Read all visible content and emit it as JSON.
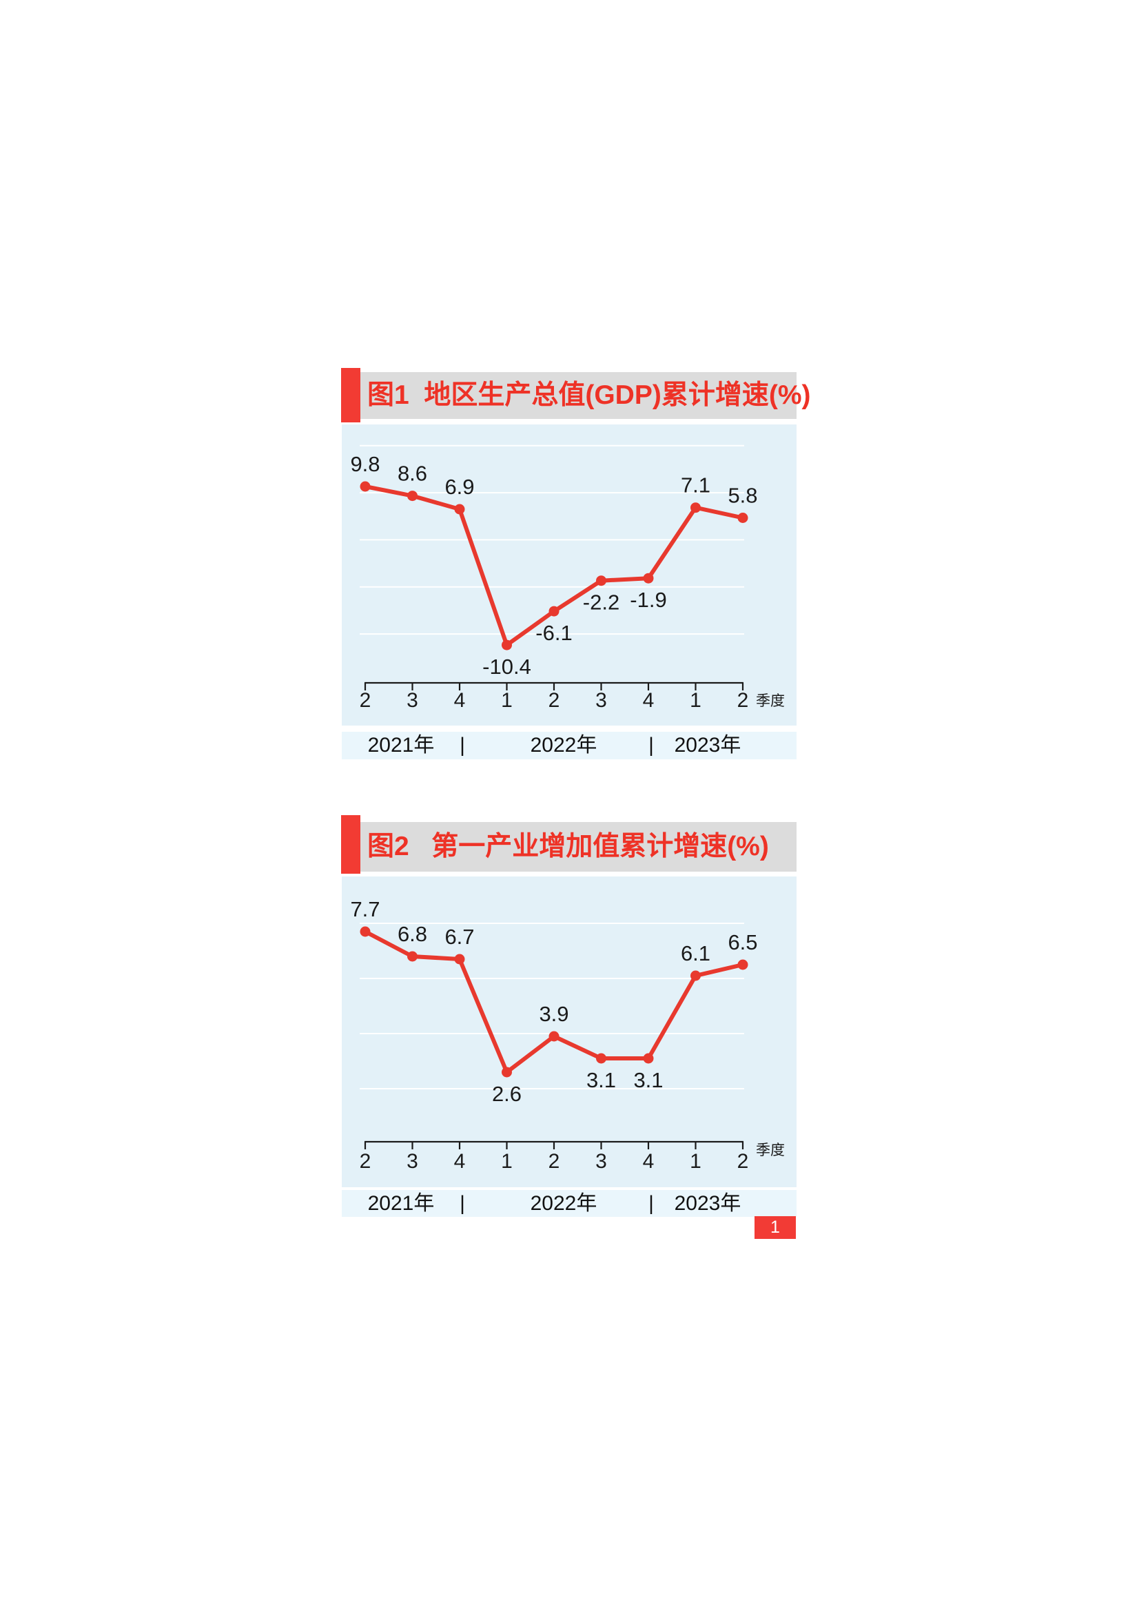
{
  "page": {
    "page_number": "1"
  },
  "colors": {
    "accent_red": "#f23b33",
    "title_text_red": "#ee3226",
    "title_bar_bg": "#dcdcdc",
    "plot_bg": "#e3f1f8",
    "year_band_bg": "#eaf6fc",
    "gridline": "#ffffff",
    "line_red": "#e8392e",
    "text_dark": "#1a1a1a",
    "page_number_bg": "#f23b35",
    "page_number_text": "#ffffff"
  },
  "chart_data": [
    {
      "type": "line",
      "title": "图1  地区生产总值(GDP)累计增速(%)",
      "x": [
        "2",
        "3",
        "4",
        "1",
        "2",
        "3",
        "4",
        "1",
        "2"
      ],
      "xlabel": "季度",
      "x_groups": [
        "2021年",
        "2022年",
        "2023年"
      ],
      "group_separator": "|",
      "values": [
        9.8,
        8.6,
        6.9,
        -10.4,
        -6.1,
        -2.2,
        -1.9,
        7.1,
        5.8
      ],
      "label_side": [
        "above",
        "above",
        "above",
        "below",
        "below",
        "below",
        "below",
        "above",
        "above"
      ],
      "gridline_values": [
        15,
        9,
        3,
        -3,
        -9
      ],
      "line_color": "#e8392e",
      "marker": "circle",
      "grid": "horizontal",
      "legend": "none"
    },
    {
      "type": "line",
      "title": "图2   第一产业增加值累计增速(%)",
      "x": [
        "2",
        "3",
        "4",
        "1",
        "2",
        "3",
        "4",
        "1",
        "2"
      ],
      "xlabel": "季度",
      "x_groups": [
        "2021年",
        "2022年",
        "2023年"
      ],
      "group_separator": "|",
      "values": [
        7.7,
        6.8,
        6.7,
        2.6,
        3.9,
        3.1,
        3.1,
        6.1,
        6.5
      ],
      "label_side": [
        "above",
        "above",
        "above",
        "below",
        "above",
        "below",
        "below",
        "above",
        "above"
      ],
      "gridline_values": [
        8,
        6,
        4,
        2
      ],
      "line_color": "#e8392e",
      "marker": "circle",
      "grid": "horizontal",
      "legend": "none"
    }
  ]
}
